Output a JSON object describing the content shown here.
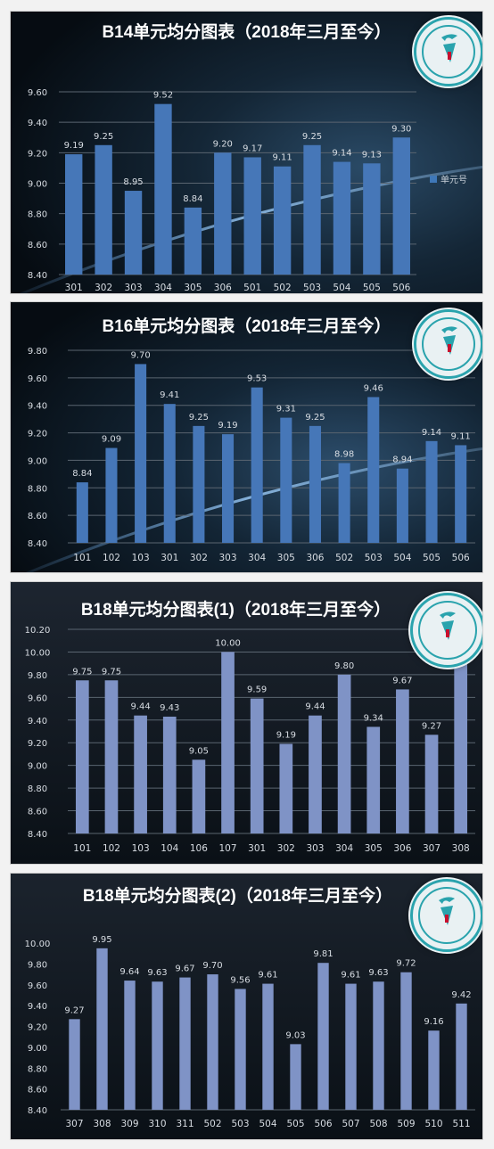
{
  "colors": {
    "bar_blue": "#4677b8",
    "bar_lavender": "#7f93c6",
    "text_light": "#d8dde3",
    "grid": "#5a6570"
  },
  "charts": [
    {
      "title": "B14单元均分图表（2018年三月至今）",
      "logo_icon": "school-emblem-icon",
      "legend": "单元号"
    },
    {
      "title": "B16单元均分图表（2018年三月至今）",
      "logo_icon": "school-emblem-icon"
    },
    {
      "title": "B18单元均分图表(1)（2018年三月至今）",
      "logo_icon": "school-emblem-icon"
    },
    {
      "title": "B18单元均分图表(2)（2018年三月至今）",
      "logo_icon": "school-emblem-icon"
    }
  ],
  "chart_data": [
    {
      "type": "bar",
      "title": "B14单元均分图表（2018年三月至今）",
      "categories": [
        "301",
        "302",
        "303",
        "304",
        "305",
        "306",
        "501",
        "502",
        "503",
        "504",
        "505",
        "506"
      ],
      "values": [
        9.19,
        9.25,
        8.95,
        9.52,
        8.84,
        9.2,
        9.17,
        9.11,
        9.25,
        9.14,
        9.13,
        9.3
      ],
      "labels": [
        "9.19",
        "9.25",
        "8.95",
        "9.52",
        "8.84",
        "9.20",
        "9.17",
        "9.11",
        "9.25",
        "9.14",
        "9.13",
        "9.30"
      ],
      "yticks": [
        "8.40",
        "8.60",
        "8.80",
        "9.00",
        "9.20",
        "9.40",
        "9.60"
      ],
      "ylim": [
        8.4,
        9.6
      ],
      "legend": "单元号",
      "legend_position": "right",
      "grid": true
    },
    {
      "type": "bar",
      "title": "B16单元均分图表（2018年三月至今）",
      "categories": [
        "101",
        "102",
        "103",
        "301",
        "302",
        "303",
        "304",
        "305",
        "306",
        "502",
        "503",
        "504",
        "505",
        "506"
      ],
      "values": [
        8.84,
        9.09,
        9.7,
        9.41,
        9.25,
        9.19,
        9.53,
        9.31,
        9.25,
        8.98,
        9.46,
        8.94,
        9.14,
        9.11
      ],
      "labels": [
        "8.84",
        "9.09",
        "9.70",
        "9.41",
        "9.25",
        "9.19",
        "9.53",
        "9.31",
        "9.25",
        "8.98",
        "9.46",
        "8.94",
        "9.14",
        "9.11"
      ],
      "yticks": [
        "8.40",
        "8.60",
        "8.80",
        "9.00",
        "9.20",
        "9.40",
        "9.60",
        "9.80"
      ],
      "ylim": [
        8.4,
        9.8
      ],
      "grid": true
    },
    {
      "type": "bar",
      "title": "B18单元均分图表(1)（2018年三月至今）",
      "categories": [
        "101",
        "102",
        "103",
        "104",
        "106",
        "107",
        "301",
        "302",
        "303",
        "304",
        "305",
        "306",
        "307",
        "308"
      ],
      "values": [
        9.75,
        9.75,
        9.44,
        9.43,
        9.05,
        10.0,
        9.59,
        9.19,
        9.44,
        9.8,
        9.34,
        9.67,
        9.27,
        9.95
      ],
      "labels": [
        "9.75",
        "9.75",
        "9.44",
        "9.43",
        "9.05",
        "10.00",
        "9.59",
        "9.19",
        "9.44",
        "9.80",
        "9.34",
        "9.67",
        "9.27",
        "9.95"
      ],
      "yticks": [
        "8.40",
        "8.60",
        "8.80",
        "9.00",
        "9.20",
        "9.40",
        "9.60",
        "9.80",
        "10.00",
        "10.20"
      ],
      "ylim": [
        8.4,
        10.2
      ],
      "grid": true
    },
    {
      "type": "bar",
      "title": "B18单元均分图表(2)（2018年三月至今）",
      "categories": [
        "307",
        "308",
        "309",
        "310",
        "311",
        "502",
        "503",
        "504",
        "505",
        "506",
        "507",
        "508",
        "509",
        "510",
        "511"
      ],
      "values": [
        9.27,
        9.95,
        9.64,
        9.63,
        9.67,
        9.7,
        9.56,
        9.61,
        9.03,
        9.81,
        9.61,
        9.63,
        9.72,
        9.16,
        9.42
      ],
      "labels": [
        "9.27",
        "9.95",
        "9.64",
        "9.63",
        "9.67",
        "9.70",
        "9.56",
        "9.61",
        "9.03",
        "9.81",
        "9.61",
        "9.63",
        "9.72",
        "9.16",
        "9.42"
      ],
      "yticks": [
        "8.40",
        "8.60",
        "8.80",
        "9.00",
        "9.20",
        "9.40",
        "9.60",
        "9.80",
        "10.00"
      ],
      "ylim": [
        8.4,
        10.0
      ],
      "grid": false
    }
  ]
}
